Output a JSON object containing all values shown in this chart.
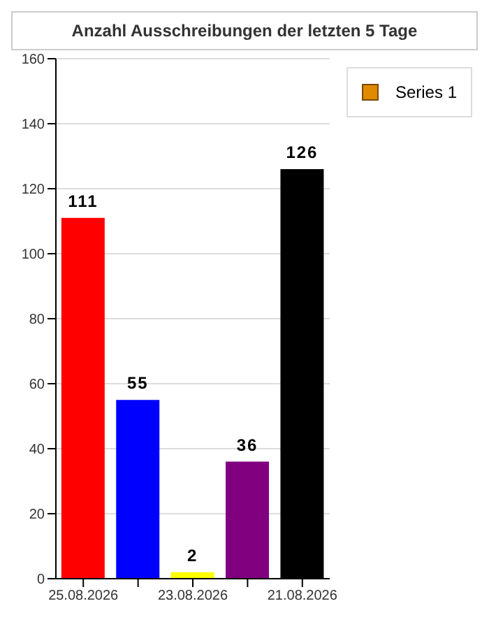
{
  "chart_data": {
    "type": "bar",
    "title": "Anzahl Ausschreibungen der letzten 5 Tage",
    "categories": [
      "25.08.2026",
      null,
      "23.08.2026",
      null,
      "21.08.2026"
    ],
    "series": [
      {
        "name": "Series 1",
        "color": "#e08a00",
        "values": [
          111,
          55,
          2,
          36,
          126
        ],
        "colors": [
          "#ff0000",
          "#0000ff",
          "#ffff00",
          "#800080",
          "#000000"
        ]
      }
    ],
    "ylim": [
      0,
      160
    ],
    "yticks": [
      0,
      20,
      40,
      60,
      80,
      100,
      120,
      140,
      160
    ],
    "grid": "y",
    "legend": "top right",
    "data_labels": true
  }
}
